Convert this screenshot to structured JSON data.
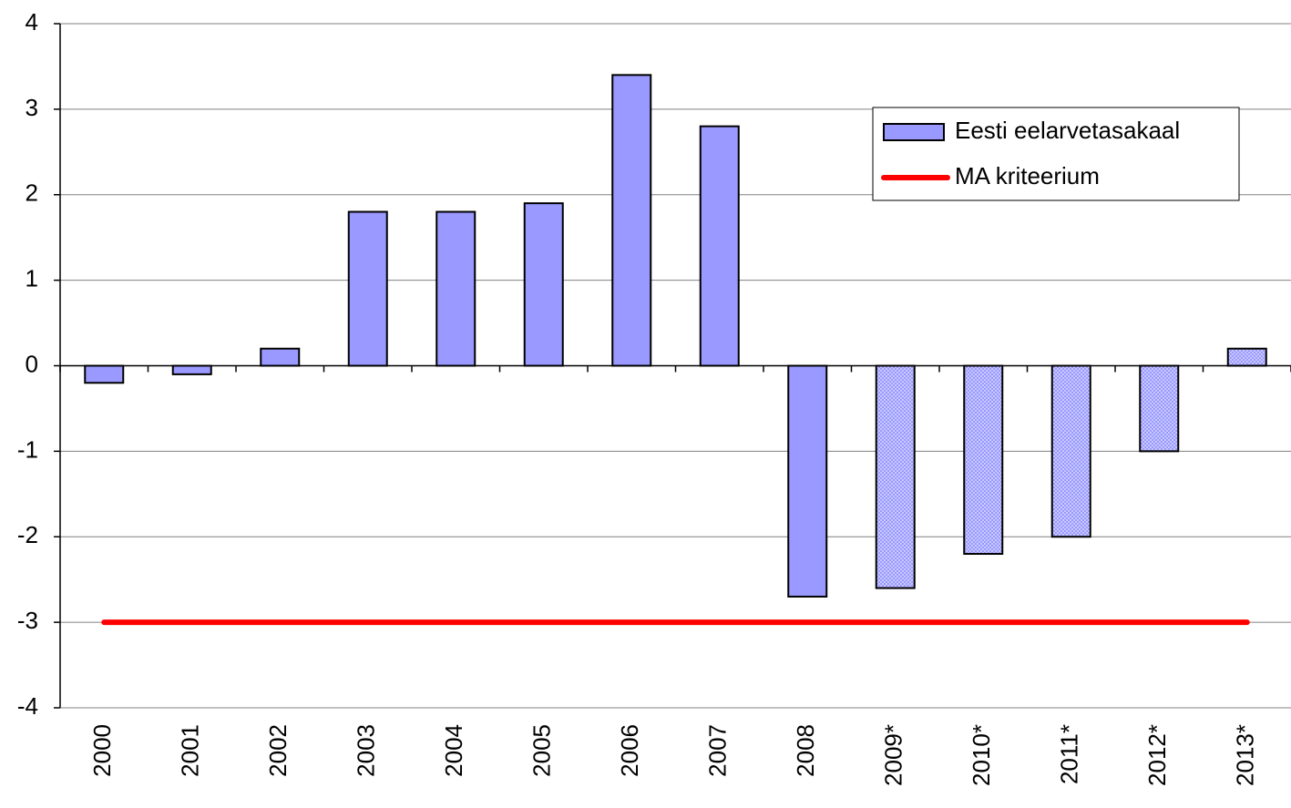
{
  "chart_data": {
    "type": "bar",
    "categories": [
      "2000",
      "2001",
      "2002",
      "2003",
      "2004",
      "2005",
      "2006",
      "2007",
      "2008",
      "2009*",
      "2010*",
      "2011*",
      "2012*",
      "2013*"
    ],
    "series": [
      {
        "name": "Eesti eelarvetasakaal",
        "color": "#9999ff",
        "values": [
          -0.2,
          -0.1,
          0.2,
          1.8,
          1.8,
          1.9,
          3.4,
          2.8,
          -2.7,
          -2.6,
          -2.2,
          -2.0,
          -1.0,
          0.2
        ]
      },
      {
        "name": "MA kriteerium",
        "color": "#ff0000",
        "type": "line",
        "values": [
          -3,
          -3,
          -3,
          -3,
          -3,
          -3,
          -3,
          -3,
          -3,
          -3,
          -3,
          -3,
          -3,
          -3
        ]
      }
    ],
    "ylim": [
      -4,
      4
    ],
    "yticks": [
      -4,
      -3,
      -2,
      -1,
      0,
      1,
      2,
      3,
      4
    ],
    "grid": true,
    "legend": "top-right"
  }
}
